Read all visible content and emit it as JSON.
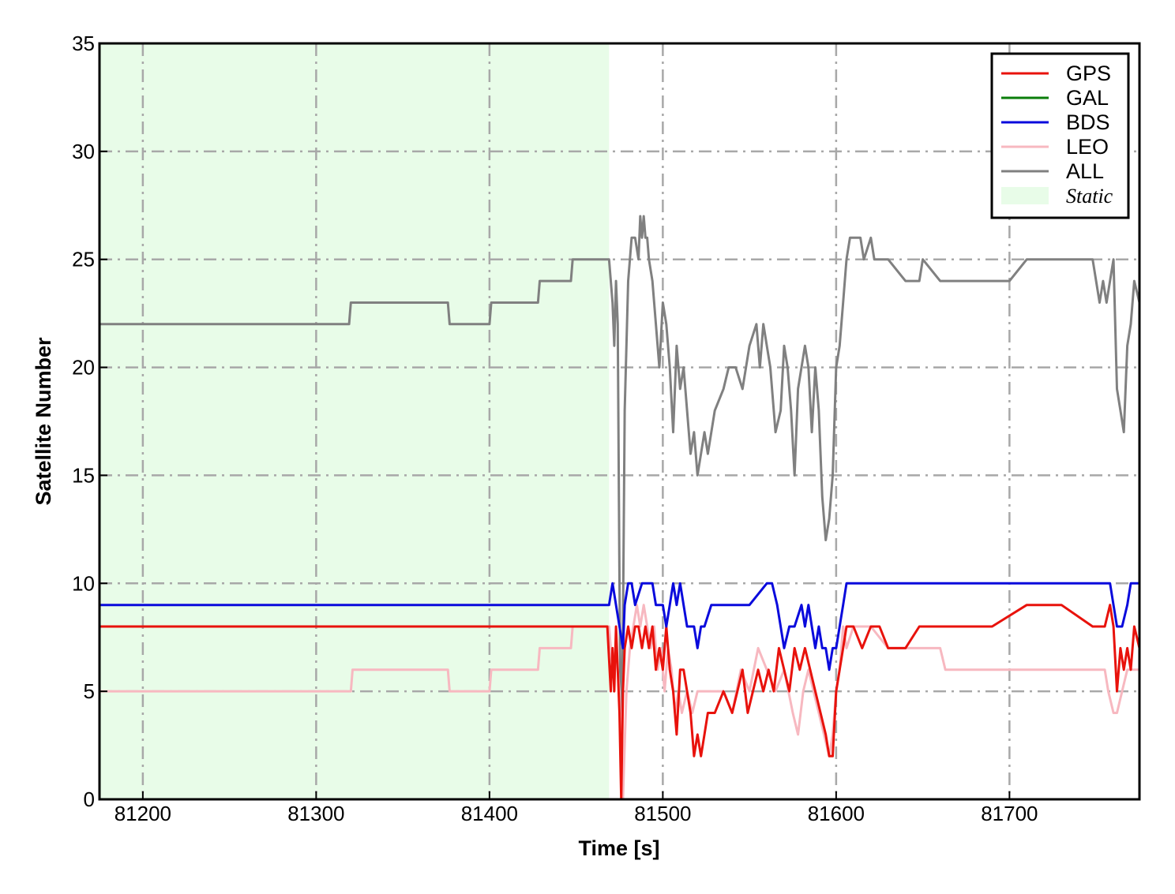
{
  "chart_data": {
    "type": "line",
    "xlabel": "Time [s]",
    "ylabel": "Satellite Number",
    "xlim": [
      81175,
      81775
    ],
    "ylim": [
      0,
      35
    ],
    "xticks": [
      81200,
      81300,
      81400,
      81500,
      81600,
      81700
    ],
    "yticks": [
      0,
      5,
      10,
      15,
      20,
      25,
      30,
      35
    ],
    "grid": true,
    "legend_position": "top-right",
    "shaded_regions": [
      {
        "label": "Static",
        "x_start": 81175,
        "x_end": 81469,
        "color": "#e8fce8"
      }
    ],
    "series": [
      {
        "name": "GPS",
        "color": "#e8120c",
        "x": [
          81175,
          81468,
          81470,
          81471,
          81472,
          81473,
          81474,
          81475,
          81476,
          81477,
          81478,
          81480,
          81482,
          81484,
          81486,
          81488,
          81490,
          81492,
          81494,
          81496,
          81498,
          81500,
          81502,
          81504,
          81506,
          81508,
          81510,
          81512,
          81514,
          81516,
          81518,
          81520,
          81522,
          81524,
          81526,
          81528,
          81530,
          81535,
          81540,
          81543,
          81546,
          81549,
          81552,
          81555,
          81558,
          81561,
          81564,
          81567,
          81570,
          81573,
          81576,
          81579,
          81582,
          81585,
          81588,
          81591,
          81594,
          81596,
          81598,
          81600,
          81602,
          81604,
          81606,
          81610,
          81615,
          81620,
          81625,
          81630,
          81640,
          81648,
          81660,
          81670,
          81690,
          81710,
          81730,
          81748,
          81755,
          81758,
          81760,
          81762,
          81764,
          81766,
          81768,
          81770,
          81772,
          81775
        ],
        "y": [
          8,
          8,
          5,
          7,
          5,
          8,
          6,
          4,
          0,
          5,
          7,
          8,
          7,
          8,
          8,
          7,
          8,
          7,
          8,
          6,
          7,
          6,
          8,
          6,
          5,
          3,
          6,
          6,
          5,
          4,
          2,
          3,
          2,
          3,
          4,
          4,
          4,
          5,
          4,
          5,
          6,
          4,
          5,
          6,
          5,
          6,
          5,
          7,
          6,
          5,
          7,
          6,
          7,
          6,
          5,
          4,
          3,
          2,
          2,
          5,
          6,
          7,
          8,
          8,
          7,
          8,
          8,
          7,
          7,
          8,
          8,
          8,
          8,
          9,
          9,
          8,
          8,
          9,
          8,
          5,
          7,
          6,
          7,
          6,
          8,
          7
        ]
      },
      {
        "name": "GAL",
        "color": "#0a7d0a",
        "x": [
          81175,
          81775
        ],
        "y": [
          0,
          0
        ]
      },
      {
        "name": "BDS",
        "color": "#0a0adc",
        "x": [
          81175,
          81469,
          81471,
          81473,
          81475,
          81477,
          81478,
          81480,
          81482,
          81484,
          81488,
          81490,
          81494,
          81496,
          81498,
          81500,
          81502,
          81504,
          81506,
          81508,
          81510,
          81512,
          81514,
          81516,
          81518,
          81520,
          81522,
          81524,
          81528,
          81532,
          81540,
          81550,
          81560,
          81563,
          81566,
          81570,
          81573,
          81576,
          81580,
          81582,
          81584,
          81586,
          81588,
          81590,
          81592,
          81594,
          81596,
          81598,
          81600,
          81602,
          81604,
          81606,
          81610,
          81650,
          81700,
          81758,
          81760,
          81762,
          81765,
          81768,
          81770,
          81775
        ],
        "y": [
          9,
          9,
          10,
          9,
          8,
          7,
          9,
          10,
          10,
          9,
          10,
          10,
          10,
          9,
          9,
          9,
          8,
          9,
          10,
          9,
          10,
          9,
          8,
          8,
          8,
          7,
          8,
          8,
          9,
          9,
          9,
          9,
          10,
          10,
          9,
          7,
          8,
          8,
          9,
          8,
          9,
          8,
          7,
          8,
          7,
          7,
          6,
          7,
          7,
          8,
          9,
          10,
          10,
          10,
          10,
          10,
          9,
          8,
          8,
          9,
          10,
          10
        ]
      },
      {
        "name": "LEO",
        "color": "#f7b8c0",
        "x": [
          81175,
          81320,
          81321,
          81376,
          81377,
          81400,
          81401,
          81428,
          81429,
          81447,
          81448,
          81469,
          81471,
          81473,
          81475,
          81477,
          81479,
          81481,
          81483,
          81485,
          81487,
          81489,
          81491,
          81493,
          81495,
          81497,
          81499,
          81501,
          81503,
          81505,
          81507,
          81509,
          81511,
          81514,
          81517,
          81520,
          81524,
          81530,
          81535,
          81540,
          81545,
          81550,
          81555,
          81560,
          81565,
          81570,
          81575,
          81578,
          81581,
          81584,
          81587,
          81590,
          81593,
          81596,
          81598,
          81600,
          81602,
          81604,
          81606,
          81610,
          81620,
          81630,
          81640,
          81650,
          81660,
          81663,
          81680,
          81700,
          81720,
          81740,
          81755,
          81757,
          81760,
          81762,
          81765,
          81768,
          81770,
          81775
        ],
        "y": [
          5,
          5,
          6,
          6,
          5,
          5,
          6,
          6,
          7,
          7,
          8,
          8,
          6,
          7,
          5,
          0,
          5,
          7,
          8,
          9,
          8,
          9,
          8,
          7,
          8,
          6,
          7,
          5,
          7,
          6,
          4,
          5,
          4,
          5,
          4,
          5,
          5,
          5,
          5,
          4,
          6,
          5,
          7,
          6,
          5,
          6,
          4,
          3,
          5,
          6,
          5,
          4,
          3,
          2,
          3,
          5,
          6,
          8,
          7,
          8,
          8,
          7,
          7,
          7,
          7,
          6,
          6,
          6,
          6,
          6,
          6,
          5,
          4,
          4,
          5,
          6,
          6,
          6
        ]
      },
      {
        "name": "ALL",
        "color": "#808080",
        "x": [
          81175,
          81319,
          81320,
          81376,
          81377,
          81400,
          81401,
          81428,
          81429,
          81447,
          81448,
          81469,
          81471,
          81472,
          81473,
          81474,
          81475,
          81476,
          81477,
          81478,
          81480,
          81482,
          81484,
          81486,
          81487,
          81488,
          81489,
          81490,
          81491,
          81492,
          81494,
          81496,
          81498,
          81500,
          81502,
          81504,
          81506,
          81508,
          81510,
          81512,
          81514,
          81516,
          81518,
          81520,
          81522,
          81524,
          81526,
          81528,
          81530,
          81535,
          81538,
          81542,
          81546,
          81548,
          81550,
          81554,
          81556,
          81558,
          81560,
          81562,
          81565,
          81568,
          81570,
          81572,
          81574,
          81576,
          81578,
          81580,
          81582,
          81584,
          81586,
          81588,
          81590,
          81592,
          81594,
          81596,
          81598,
          81600,
          81602,
          81604,
          81606,
          81608,
          81614,
          81616,
          81620,
          81622,
          81630,
          81640,
          81648,
          81650,
          81660,
          81700,
          81710,
          81730,
          81748,
          81750,
          81752,
          81754,
          81756,
          81758,
          81760,
          81762,
          81764,
          81766,
          81768,
          81770,
          81772,
          81775
        ],
        "y": [
          22,
          22,
          23,
          23,
          22,
          22,
          23,
          23,
          24,
          24,
          25,
          25,
          23,
          21,
          24,
          22,
          10,
          1,
          8,
          18,
          24,
          26,
          26,
          25,
          27,
          26,
          27,
          26,
          26,
          25,
          24,
          22,
          20,
          23,
          22,
          20,
          17,
          21,
          19,
          20,
          18,
          16,
          17,
          15,
          16,
          17,
          16,
          17,
          18,
          19,
          20,
          20,
          19,
          20,
          21,
          22,
          20,
          22,
          21,
          20,
          17,
          18,
          21,
          20,
          18,
          15,
          19,
          20,
          21,
          20,
          17,
          20,
          18,
          14,
          12,
          13,
          15,
          20,
          21,
          23,
          25,
          26,
          26,
          25,
          26,
          25,
          25,
          24,
          24,
          25,
          24,
          24,
          25,
          25,
          25,
          24,
          23,
          24,
          23,
          24,
          25,
          19,
          18,
          17,
          21,
          22,
          24,
          23
        ]
      }
    ]
  },
  "legend": {
    "entries": [
      {
        "label": "GPS",
        "color": "#e8120c",
        "kind": "line"
      },
      {
        "label": "GAL",
        "color": "#0a7d0a",
        "kind": "line"
      },
      {
        "label": "BDS",
        "color": "#0a0adc",
        "kind": "line"
      },
      {
        "label": "LEO",
        "color": "#f7b8c0",
        "kind": "line"
      },
      {
        "label": "ALL",
        "color": "#808080",
        "kind": "line"
      },
      {
        "label": "Static",
        "color": "#e8fce8",
        "kind": "patch"
      }
    ]
  }
}
